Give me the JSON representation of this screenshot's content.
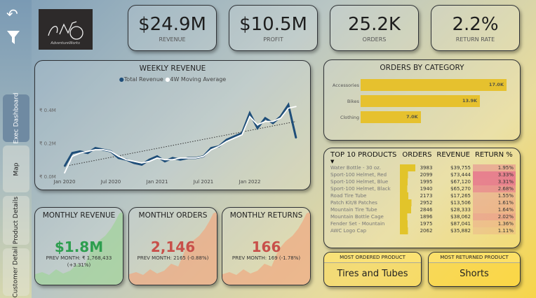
{
  "sidebar": {
    "icons": [
      "back-arrow-icon",
      "filter-icon"
    ],
    "tabs": [
      {
        "label": "Exec Dashboard",
        "active": true
      },
      {
        "label": "Map"
      },
      {
        "label": "Product Details"
      },
      {
        "label": "Customer Detail"
      }
    ]
  },
  "logo": {
    "text": "AdventureWorks"
  },
  "kpis": [
    {
      "value": "$24.9M",
      "label": "REVENUE"
    },
    {
      "value": "$10.5M",
      "label": "PROFIT"
    },
    {
      "value": "25.2K",
      "label": "ORDERS"
    },
    {
      "value": "2.2%",
      "label": "RETURN RATE"
    }
  ],
  "chart_data": [
    {
      "type": "line",
      "title": "WEEKLY REVENUE",
      "legend": "top",
      "yticks": [
        "₹ 0.0M",
        "₹ 0.2M",
        "₹ 0.4M"
      ],
      "ylim": [
        0,
        0.45
      ],
      "xticks": [
        "Jan 2020",
        "Jul 2020",
        "Jan 2021",
        "Jul 2021",
        "Jan 2022"
      ],
      "x": [
        "2020-01",
        "2020-02",
        "2020-03",
        "2020-04",
        "2020-05",
        "2020-06",
        "2020-07",
        "2020-08",
        "2020-09",
        "2020-10",
        "2020-11",
        "2020-12",
        "2021-01",
        "2021-02",
        "2021-03",
        "2021-04",
        "2021-05",
        "2021-06",
        "2021-07",
        "2021-08",
        "2021-09",
        "2021-10",
        "2021-11",
        "2021-12",
        "2022-01",
        "2022-02",
        "2022-03",
        "2022-04",
        "2022-05",
        "2022-06",
        "2022-07"
      ],
      "series": [
        {
          "name": "Total Revenue",
          "color": "#1f4e79",
          "values": [
            0.06,
            0.14,
            0.15,
            0.14,
            0.17,
            0.16,
            0.15,
            0.11,
            0.1,
            0.08,
            0.07,
            0.1,
            0.12,
            0.09,
            0.11,
            0.1,
            0.11,
            0.11,
            0.12,
            0.17,
            0.18,
            0.22,
            0.24,
            0.26,
            0.38,
            0.29,
            0.35,
            0.32,
            0.36,
            0.43,
            0.23
          ]
        },
        {
          "name": "4W Moving Average",
          "color": "#ffffff",
          "values": [
            0.02,
            0.12,
            0.14,
            0.15,
            0.16,
            0.16,
            0.15,
            0.12,
            0.1,
            0.09,
            0.08,
            0.09,
            0.11,
            0.1,
            0.1,
            0.11,
            0.11,
            0.11,
            0.12,
            0.16,
            0.18,
            0.21,
            0.23,
            0.25,
            0.36,
            0.31,
            0.33,
            0.33,
            0.35,
            0.41,
            0.42
          ]
        }
      ],
      "trendline": [
        0.06,
        0.33
      ]
    },
    {
      "type": "bar",
      "title": "ORDERS BY CATEGORY",
      "categories": [
        "Accessories",
        "Bikes",
        "Clothing"
      ],
      "values": [
        17.0,
        13.9,
        7.0
      ],
      "labels": [
        "17.0K",
        "13.9K",
        "7.0K"
      ],
      "color": "#e6c12e"
    }
  ],
  "top10": {
    "headers": [
      "TOP 10 PRODUCTS",
      "ORDERS",
      "REVENUE",
      "RETURN %"
    ],
    "rows": [
      [
        "Water Bottle - 30 oz.",
        3983,
        "$39,755",
        "1.95%"
      ],
      [
        "Sport-100 Helmet, Red",
        2099,
        "$73,444",
        "3.33%"
      ],
      [
        "Sport-100 Helmet, Blue",
        1995,
        "$67,120",
        "3.31%"
      ],
      [
        "Sport-100 Helmet, Black",
        1940,
        "$65,270",
        "2.68%"
      ],
      [
        "Road Tire Tube",
        2173,
        "$17,265",
        "1.55%"
      ],
      [
        "Patch Kit/8 Patches",
        2952,
        "$13,506",
        "1.61%"
      ],
      [
        "Mountain Tire Tube",
        2846,
        "$28,333",
        "1.64%"
      ],
      [
        "Mountain Bottle Cage",
        1896,
        "$38,062",
        "2.02%"
      ],
      [
        "Fender Set - Mountain",
        1975,
        "$87,041",
        "1.36%"
      ],
      [
        "AWC Logo Cap",
        2062,
        "$35,882",
        "1.11%"
      ]
    ]
  },
  "monthly": [
    {
      "title": "MONTHLY REVENUE",
      "value": "$1.8M",
      "prev": "PREV MONTH: ₹ 1,768,433",
      "change": "(+3.31%)",
      "color": "#2e9e4f",
      "area": "#9fd39a"
    },
    {
      "title": "MONTHLY ORDERS",
      "value": "2,146",
      "prev": "PREV MONTH: 2165 (-0.88%)",
      "change": "",
      "color": "#c8504a",
      "area": "#f0a880"
    },
    {
      "title": "MONTHLY RETURNS",
      "value": "166",
      "prev": "PREV MONTH: 169 (-1.78%)",
      "change": "",
      "color": "#c8504a",
      "area": "#f0a880"
    }
  ],
  "most_ordered": {
    "label": "MOST ORDERED PRODUCT",
    "value": "Tires and Tubes"
  },
  "most_returned": {
    "label": "MOST RETURNED PRODUCT",
    "value": "Shorts"
  }
}
